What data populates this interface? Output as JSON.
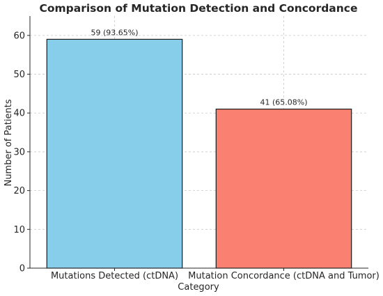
{
  "chart_data": {
    "type": "bar",
    "title": "Comparison of Mutation Detection and Concordance",
    "xlabel": "Category",
    "ylabel": "Number of Patients",
    "categories": [
      "Mutations Detected (ctDNA)",
      "Mutation Concordance (ctDNA and Tumor)"
    ],
    "values": [
      59,
      41
    ],
    "data_labels": [
      "59 (93.65%)",
      "41 (65.08%)"
    ],
    "colors": [
      "#87ceeb",
      "#fa8072"
    ],
    "ylim": [
      0,
      65
    ],
    "yticks": [
      0,
      10,
      20,
      30,
      40,
      50,
      60
    ],
    "grid": true
  }
}
